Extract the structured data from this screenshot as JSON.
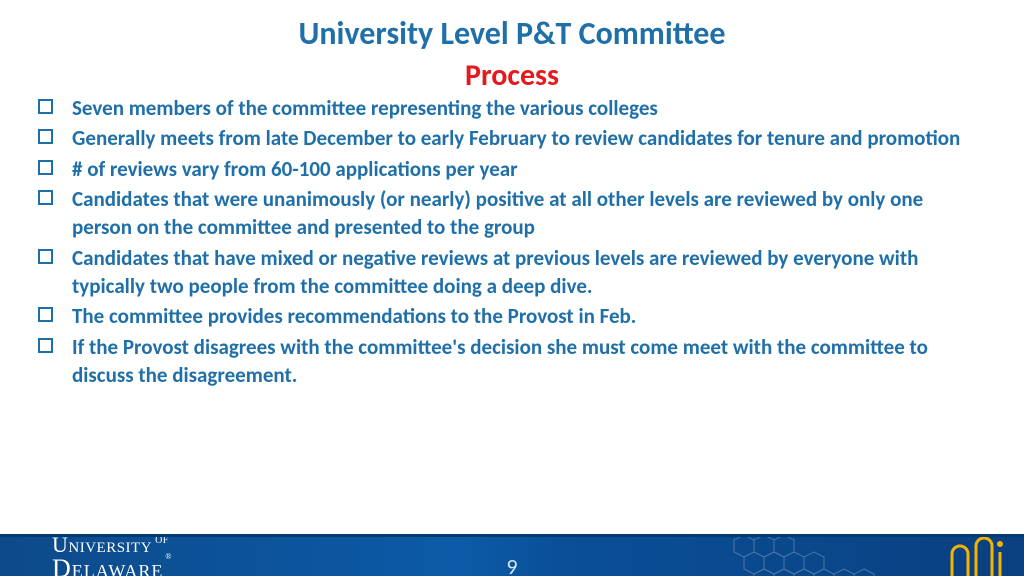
{
  "title": {
    "text": "University Level P&T Committee",
    "color": "#1f6fa8",
    "fontsize": 32,
    "margin_top": 14
  },
  "subtitle": {
    "text": "Process",
    "color": "#e41a1c",
    "fontsize": 30,
    "margin_top": 4
  },
  "bullets": {
    "color": "#1f6fa8",
    "fontsize": 21,
    "box_border_color": "#1f6fa8",
    "items": [
      "Seven members of the committee representing the various colleges",
      "Generally meets from late December to early February to review candidates for tenure and promotion",
      "# of reviews vary from 60-100 applications per year",
      "Candidates that were unanimously (or nearly) positive at all other levels are reviewed by only one person on the committee and presented to the group",
      "Candidates that have mixed or negative reviews at previous levels are reviewed by everyone with typically two people from the committee doing a deep dive.",
      "The committee provides recommendations to the Provost in Feb.",
      "If the Provost disagrees with the committee's decision she must come meet with the committee to discuss the disagreement."
    ]
  },
  "footer": {
    "page_number": "9",
    "logo_line1_big": "U",
    "logo_line1_rest": "NIVERSITY",
    "logo_line1_of": " OF",
    "logo_line2_big": "D",
    "logo_line2_rest": "ELAWARE",
    "deco_stroke": "#f5b400"
  }
}
